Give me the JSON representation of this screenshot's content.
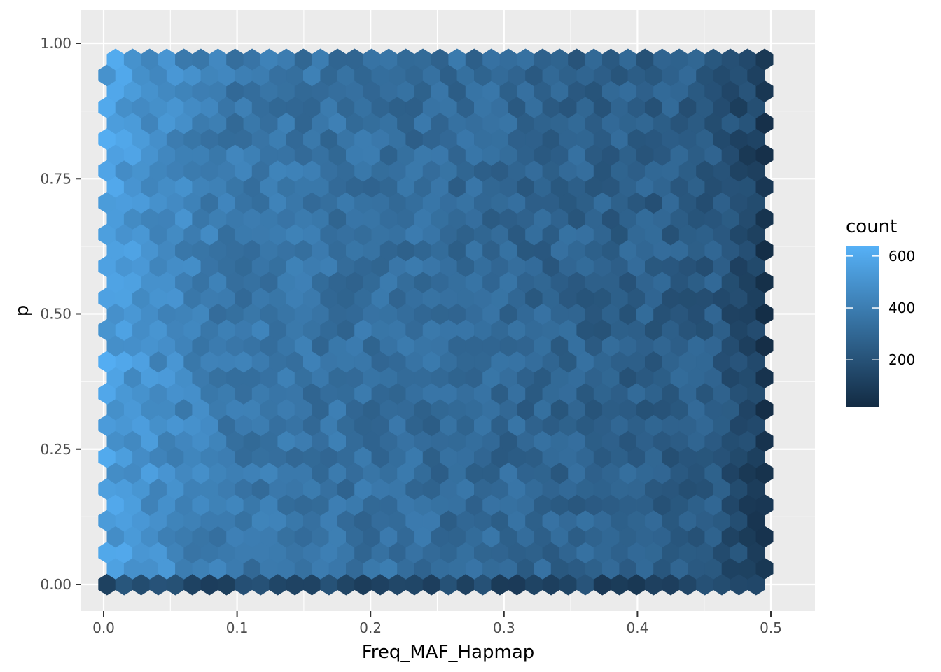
{
  "chart_data": {
    "type": "heatmap",
    "subtype": "hexbin",
    "title": "",
    "xlabel": "Freq_MAF_Hapmap",
    "ylabel": "p",
    "xlim": [
      -0.018,
      0.535
    ],
    "ylim": [
      -0.1,
      1.12
    ],
    "x_ticks": [
      0.0,
      0.1,
      0.2,
      0.3,
      0.4,
      0.5
    ],
    "x_tick_labels": [
      "0.0",
      "0.1",
      "0.2",
      "0.3",
      "0.4",
      "0.5"
    ],
    "y_ticks": [
      0.0,
      0.25,
      0.5,
      0.75,
      1.0
    ],
    "y_tick_labels": [
      "0.00",
      "0.25",
      "0.50",
      "0.75",
      "1.00"
    ],
    "grid": true,
    "background": "#ebebeb",
    "legend": {
      "title": "count",
      "position": "right",
      "ticks": [
        200,
        400,
        600
      ],
      "tick_labels": [
        "200",
        "400",
        "600"
      ],
      "range": [
        20,
        640
      ],
      "color_low": "#132b43",
      "color_high": "#56b1f7"
    },
    "hexbin": {
      "columns": 39,
      "rows": 34,
      "x_start": 0.0025,
      "x_step": 0.0128,
      "y_start": 0.0,
      "y_step": 0.0294,
      "typical_count_pattern": "counts highest (~450-640) at low Freq_MAF_Hapmap near 0.02-0.08, decreasing to ~250-350 in the middle range and lowest (~20-150) along the top row p≈1.0, bottom row p≈0.0 edges and at Freq_MAF_Hapmap≈0.5"
    }
  }
}
